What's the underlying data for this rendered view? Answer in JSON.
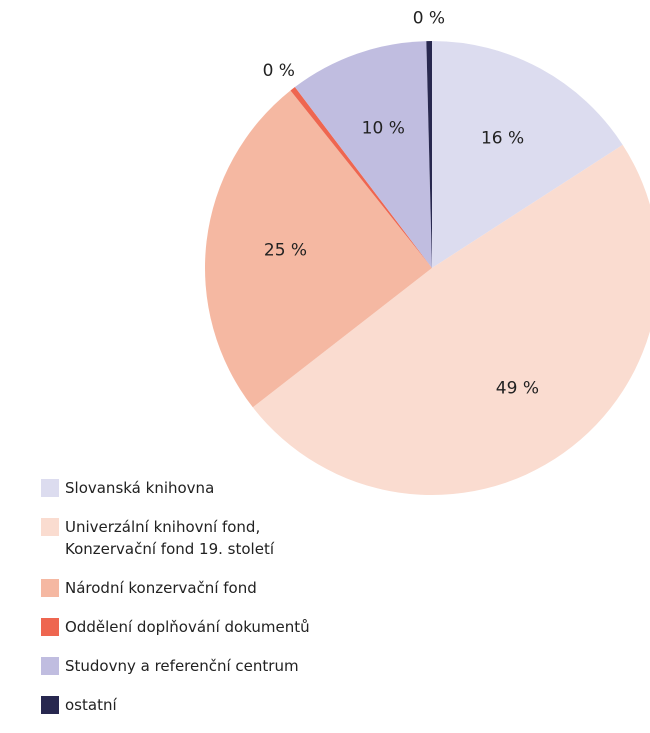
{
  "chart_data": {
    "type": "pie",
    "categories": [
      "Slovanská knihovna",
      "Univerzální knihovní fond,\nKonzervační fond 19. století",
      "Národní konzervační fond",
      "Oddělení doplňování dokumentů",
      "Studovny a referenční centrum",
      "ostatní"
    ],
    "values": [
      16,
      49,
      25,
      0.4,
      10,
      0.4
    ],
    "value_labels": [
      "16 %",
      "49 %",
      "25 %",
      "0 %",
      "10 %",
      "0 %"
    ],
    "colors": [
      "#dcdcef",
      "#fadcd0",
      "#f5b8a2",
      "#ee6650",
      "#c0bde0",
      "#28284f"
    ]
  }
}
